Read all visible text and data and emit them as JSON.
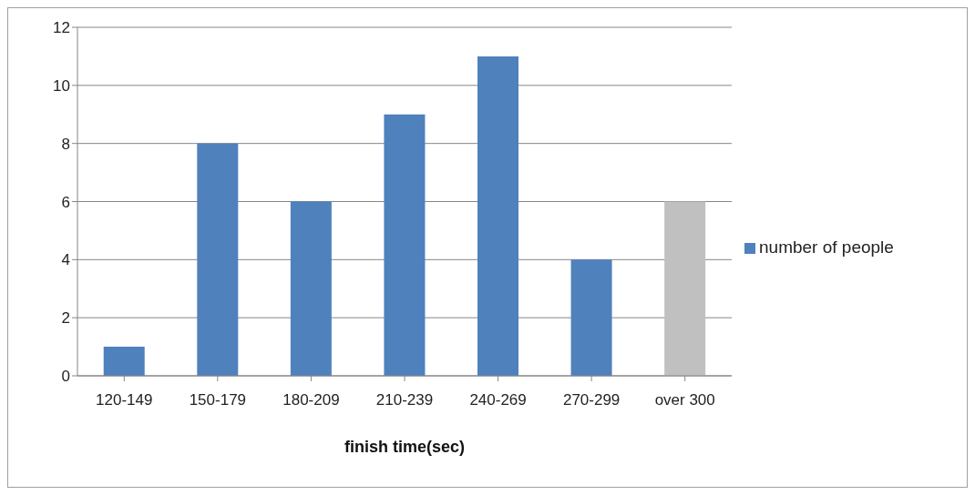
{
  "chart_data": {
    "type": "bar",
    "xlabel": "finish time(sec)",
    "categories": [
      "120-149",
      "150-179",
      "180-209",
      "210-239",
      "240-269",
      "270-299",
      "over 300"
    ],
    "series": [
      {
        "name": "number of people",
        "color": "#4f81bd",
        "values": [
          1,
          8,
          6,
          9,
          11,
          4,
          6
        ],
        "colors": [
          "#4f81bd",
          "#4f81bd",
          "#4f81bd",
          "#4f81bd",
          "#4f81bd",
          "#4f81bd",
          "#c0c0c0"
        ]
      }
    ],
    "ylim": [
      0,
      12
    ],
    "yticks": [
      0,
      2,
      4,
      6,
      8,
      10,
      12
    ],
    "grid": "y",
    "legend": "right"
  }
}
